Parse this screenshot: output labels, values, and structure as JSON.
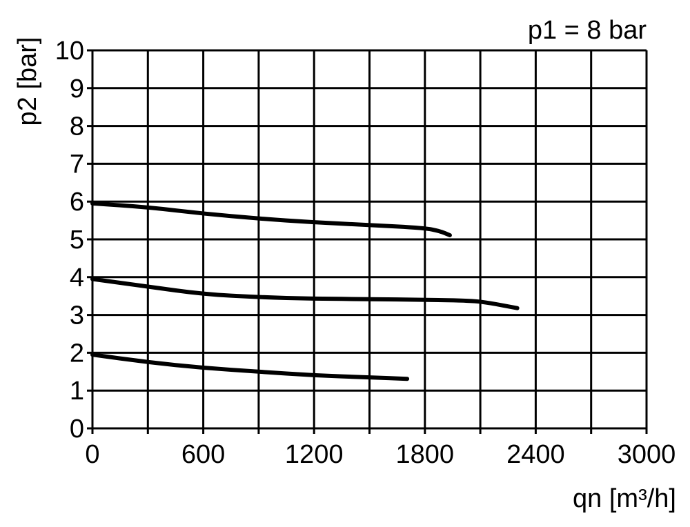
{
  "chart_data": {
    "type": "line",
    "title": "p1 = 8 bar",
    "xlabel": "qn [m³/h]",
    "ylabel": "p2 [bar]",
    "xlim": [
      0,
      3000
    ],
    "ylim": [
      0,
      10
    ],
    "xticks": [
      0,
      600,
      1200,
      1800,
      2400,
      3000
    ],
    "yticks": [
      0,
      1,
      2,
      3,
      4,
      5,
      6,
      7,
      8,
      9,
      10
    ],
    "x_grid_step": 300,
    "y_grid_step": 1,
    "grid": true,
    "line_color": "#000000",
    "series": [
      {
        "x": [
          0,
          300,
          600,
          900,
          1200,
          1500,
          1800,
          1880,
          1935
        ],
        "y": [
          5.95,
          5.85,
          5.68,
          5.55,
          5.45,
          5.38,
          5.3,
          5.22,
          5.11
        ]
      },
      {
        "x": [
          0,
          300,
          600,
          900,
          1200,
          1500,
          1800,
          2050,
          2150,
          2300
        ],
        "y": [
          3.95,
          3.75,
          3.55,
          3.47,
          3.43,
          3.42,
          3.4,
          3.38,
          3.32,
          3.18
        ]
      },
      {
        "x": [
          0,
          300,
          600,
          900,
          1200,
          1500,
          1704
        ],
        "y": [
          1.95,
          1.75,
          1.6,
          1.5,
          1.4,
          1.35,
          1.31
        ]
      }
    ]
  }
}
